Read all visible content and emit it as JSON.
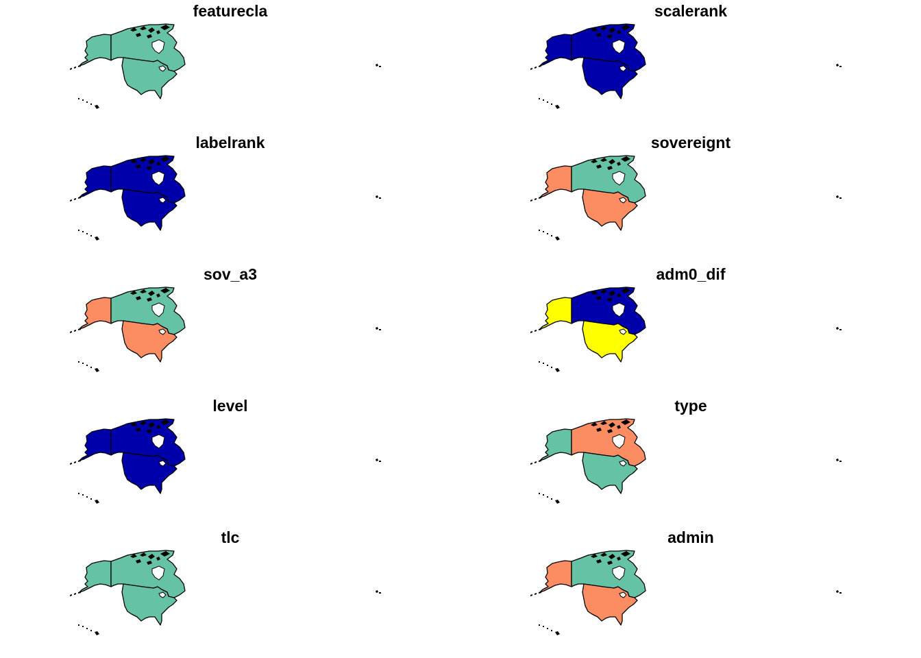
{
  "figure": {
    "layout": "5x2 grid of small-multiple choropleth maps",
    "regions": [
      "Alaska",
      "Canada",
      "Contiguous US",
      "Hawaii",
      "Remote islets"
    ],
    "panels": [
      {
        "title": "featurecla",
        "colors": {
          "alaska": "#66C2A5",
          "canada": "#66C2A5",
          "us": "#66C2A5"
        }
      },
      {
        "title": "scalerank",
        "colors": {
          "alaska": "#0000AA",
          "canada": "#0000AA",
          "us": "#0000AA"
        }
      },
      {
        "title": "labelrank",
        "colors": {
          "alaska": "#0000AA",
          "canada": "#0000AA",
          "us": "#0000AA"
        }
      },
      {
        "title": "sovereignt",
        "colors": {
          "alaska": "#FC8D62",
          "canada": "#66C2A5",
          "us": "#FC8D62"
        }
      },
      {
        "title": "sov_a3",
        "colors": {
          "alaska": "#FC8D62",
          "canada": "#66C2A5",
          "us": "#FC8D62"
        }
      },
      {
        "title": "adm0_dif",
        "colors": {
          "alaska": "#FFFF00",
          "canada": "#0000AA",
          "us": "#FFFF00"
        }
      },
      {
        "title": "level",
        "colors": {
          "alaska": "#0000AA",
          "canada": "#0000AA",
          "us": "#0000AA"
        }
      },
      {
        "title": "type",
        "colors": {
          "alaska": "#66C2A5",
          "canada": "#FC8D62",
          "us": "#66C2A5"
        }
      },
      {
        "title": "tlc",
        "colors": {
          "alaska": "#66C2A5",
          "canada": "#66C2A5",
          "us": "#66C2A5"
        }
      },
      {
        "title": "admin",
        "colors": {
          "alaska": "#FC8D62",
          "canada": "#66C2A5",
          "us": "#FC8D62"
        }
      }
    ]
  }
}
